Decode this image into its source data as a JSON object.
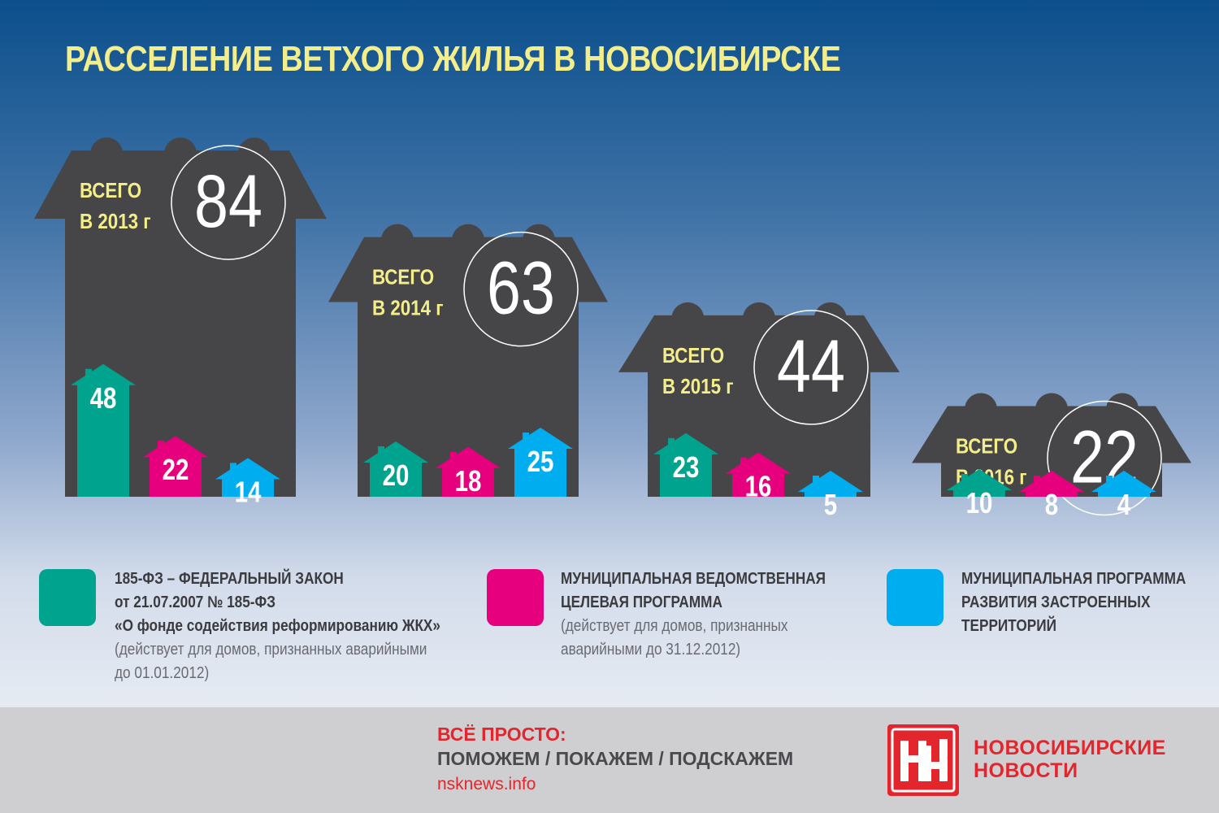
{
  "title": "РАССЕЛЕНИЕ ВЕТХОГО ЖИЛЬЯ В НОВОСИБИРСКЕ",
  "colors": {
    "federal": "#00a38d",
    "departmental": "#e6007e",
    "territorial": "#00aeef",
    "house": "#464649",
    "title": "#f4ee8a"
  },
  "chart_data": {
    "type": "bar",
    "title": "РАССЕЛЕНИЕ ВЕТХОГО ЖИЛЬЯ В НОВОСИБИРСКЕ",
    "categories": [
      "2013",
      "2014",
      "2015",
      "2016"
    ],
    "totals": [
      84,
      63,
      44,
      22
    ],
    "total_labels": [
      [
        "ВСЕГО",
        "В 2013 г"
      ],
      [
        "ВСЕГО",
        "В 2014 г"
      ],
      [
        "ВСЕГО",
        "В 2015 г"
      ],
      [
        "ВСЕГО",
        "В 2016 г"
      ]
    ],
    "series": [
      {
        "name": "185-ФЗ – ФЕДЕРАЛЬНЫЙ ЗАКОН",
        "color": "#00a38d",
        "values": [
          48,
          20,
          23,
          10
        ]
      },
      {
        "name": "МУНИЦИПАЛЬНАЯ ВЕДОМСТВЕННАЯ ЦЕЛЕВАЯ ПРОГРАММА",
        "color": "#e6007e",
        "values": [
          22,
          18,
          16,
          8
        ]
      },
      {
        "name": "МУНИЦИПАЛЬНАЯ ПРОГРАММА РАЗВИТИЯ ЗАСТРОЕННЫХ ТЕРРИТОРИЙ",
        "color": "#00aeef",
        "values": [
          14,
          25,
          5,
          4
        ]
      }
    ]
  },
  "legend": [
    {
      "title_lines": [
        "185-ФЗ – ФЕДЕРАЛЬНЫЙ ЗАКОН",
        "от 21.07.2007 № 185-ФЗ",
        "«О фонде содействия реформированию ЖКХ»"
      ],
      "note_lines": [
        "(действует для домов, признанных аварийными",
        "до 01.01.2012)"
      ]
    },
    {
      "title_lines": [
        "МУНИЦИПАЛЬНАЯ ВЕДОМСТВЕННАЯ",
        "ЦЕЛЕВАЯ ПРОГРАММА"
      ],
      "note_lines": [
        "(действует для домов, признанных",
        "аварийными до 31.12.2012)"
      ]
    },
    {
      "title_lines": [
        "МУНИЦИПАЛЬНАЯ ПРОГРАММА",
        "РАЗВИТИЯ ЗАСТРОЕННЫХ",
        "ТЕРРИТОРИЙ"
      ],
      "note_lines": []
    }
  ],
  "footer": {
    "motto_line1": "ВСЁ ПРОСТО:",
    "motto_line2": "ПОМОЖЕМ / ПОКАЖЕМ / ПОДСКАЖЕМ",
    "site": "nsknews.info",
    "brand_line1": "НОВОСИБИРСКИЕ",
    "brand_line2": "НОВОСТИ",
    "logo_icon": "nn-logo-icon"
  }
}
